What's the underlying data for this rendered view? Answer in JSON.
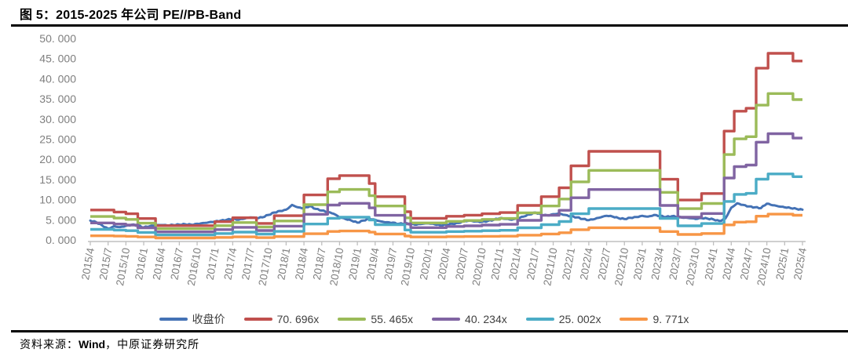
{
  "figure": {
    "title": "图 5：2015-2025 年公司 PE//PB-Band",
    "source_prefix": "资料来源：",
    "source_vendor": "Wind",
    "source_suffix": "，中原证券研究所"
  },
  "chart_data": {
    "type": "line",
    "title": "2015-2025 年公司 PE/PB-Band",
    "grid": false,
    "legend_position": "bottom",
    "y_axis": {
      "min": 0,
      "max": 50,
      "step": 5,
      "tick_labels": [
        "0. 000",
        "5. 000",
        "10. 000",
        "15. 000",
        "20. 000",
        "25. 000",
        "30. 000",
        "35. 000",
        "40. 000",
        "45. 000",
        "50. 000"
      ]
    },
    "x_axis": {
      "unit": "quarter",
      "months_total": 120,
      "tick_every_months": 3,
      "tick_labels": [
        "2015/4",
        "2015/7",
        "2015/10",
        "2016/1",
        "2016/4",
        "2016/7",
        "2016/10",
        "2017/1",
        "2017/4",
        "2017/7",
        "2017/10",
        "2018/1",
        "2018/4",
        "2018/7",
        "2018/10",
        "2019/1",
        "2019/4",
        "2019/7",
        "2019/10",
        "2020/1",
        "2020/4",
        "2020/7",
        "2020/10",
        "2021/1",
        "2021/4",
        "2021/7",
        "2021/10",
        "2022/1",
        "2022/4",
        "2022/7",
        "2022/10",
        "2023/1",
        "2023/4",
        "2023/7",
        "2023/10",
        "2024/1",
        "2024/4",
        "2024/7",
        "2024/10",
        "2025/1",
        "2025/4"
      ]
    },
    "legend": [
      {
        "label": "收盘价",
        "color": "#4472B5"
      },
      {
        "label": "70. 696x",
        "color": "#C0504D"
      },
      {
        "label": "55. 465x",
        "color": "#9BBB59"
      },
      {
        "label": "40. 234x",
        "color": "#8064A2"
      },
      {
        "label": "25. 002x",
        "color": "#4BACC6"
      },
      {
        "label": "9. 771x",
        "color": "#F79646"
      }
    ],
    "series": {
      "close_price": {
        "name": "收盘价",
        "color": "#4472B5",
        "x_unit": "months since 2015/4 (0..120)",
        "monthly_values": [
          4.8,
          4.4,
          3.6,
          2.8,
          3.4,
          3.2,
          3.5,
          3.8,
          3.6,
          3.1,
          3.4,
          3.6,
          3.7,
          3.6,
          3.7,
          3.8,
          3.9,
          3.8,
          4.0,
          4.2,
          4.4,
          4.6,
          4.8,
          5.0,
          5.2,
          5.0,
          5.3,
          5.6,
          5.4,
          5.6,
          6.2,
          6.8,
          7.2,
          7.5,
          8.7,
          8.1,
          7.9,
          8.4,
          7.7,
          7.3,
          6.9,
          6.5,
          5.6,
          5.2,
          4.8,
          4.3,
          4.8,
          5.3,
          5.0,
          4.6,
          4.4,
          4.3,
          4.0,
          4.1,
          3.9,
          3.8,
          4.0,
          4.1,
          3.9,
          3.6,
          3.8,
          4.0,
          4.2,
          4.7,
          4.8,
          4.6,
          4.5,
          4.7,
          5.0,
          5.4,
          5.2,
          5.0,
          5.3,
          5.8,
          6.3,
          6.8,
          6.3,
          6.1,
          6.4,
          6.6,
          6.2,
          5.9,
          5.6,
          5.2,
          4.9,
          5.2,
          5.6,
          6.0,
          5.8,
          5.4,
          5.2,
          5.5,
          5.7,
          6.0,
          5.8,
          6.2,
          6.0,
          5.7,
          5.9,
          5.7,
          5.5,
          5.4,
          5.2,
          5.4,
          5.3,
          5.1,
          4.7,
          5.3,
          8.0,
          9.1,
          8.7,
          8.3,
          8.1,
          7.9,
          9.0,
          8.6,
          8.3,
          8.1,
          7.9,
          7.7,
          7.5
        ]
      },
      "pe_bands": {
        "description": "PE band step lines: band value = eps_ttm × multiple; eps_steps = [month since 2015/4, eps]",
        "multiples": [
          {
            "label": "70. 696x",
            "value": 70.696,
            "color": "#C0504D"
          },
          {
            "label": "55. 465x",
            "value": 55.465,
            "color": "#9BBB59"
          },
          {
            "label": "40. 234x",
            "value": 40.234,
            "color": "#8064A2"
          },
          {
            "label": "25. 002x",
            "value": 25.002,
            "color": "#4BACC6"
          },
          {
            "label": "9. 771x",
            "value": 9.771,
            "color": "#F79646"
          }
        ],
        "eps_steps": [
          [
            0,
            0.105
          ],
          [
            4,
            0.098
          ],
          [
            6,
            0.092
          ],
          [
            8,
            0.075
          ],
          [
            11,
            0.05
          ],
          [
            21,
            0.064
          ],
          [
            24,
            0.078
          ],
          [
            28,
            0.058
          ],
          [
            31,
            0.085
          ],
          [
            36,
            0.158
          ],
          [
            40,
            0.215
          ],
          [
            42,
            0.226
          ],
          [
            47,
            0.198
          ],
          [
            48,
            0.152
          ],
          [
            53,
            0.099
          ],
          [
            54,
            0.076
          ],
          [
            60,
            0.083
          ],
          [
            63,
            0.087
          ],
          [
            66,
            0.092
          ],
          [
            69,
            0.096
          ],
          [
            72,
            0.121
          ],
          [
            76,
            0.152
          ],
          [
            79,
            0.183
          ],
          [
            81,
            0.26
          ],
          [
            84,
            0.311
          ],
          [
            96,
            0.213
          ],
          [
            99,
            0.14
          ],
          [
            103,
            0.163
          ],
          [
            106.8,
            0.382
          ],
          [
            108.5,
            0.452
          ],
          [
            110.5,
            0.462
          ],
          [
            112.2,
            0.603
          ],
          [
            114.2,
            0.655
          ],
          [
            118.4,
            0.628
          ]
        ]
      }
    }
  },
  "colors": {
    "axis_line": "#BFBFBF",
    "axis_text": "#7F7F7F",
    "rule": "#000000"
  }
}
